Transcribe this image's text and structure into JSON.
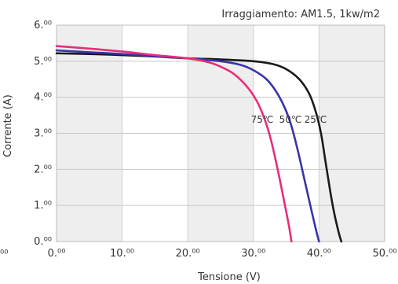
{
  "chart_data": {
    "type": "line",
    "subtitle": "Irraggiamento: AM1.5, 1kw/m2",
    "xlabel": "Tensione (V)",
    "ylabel": "Corrente (A)",
    "xlim": [
      0,
      50
    ],
    "ylim": [
      0,
      6
    ],
    "x_ticks": [
      "0.⁰⁰",
      "10.⁰⁰",
      "20.⁰⁰",
      "30.⁰⁰",
      "40.⁰⁰",
      "50.⁰⁰"
    ],
    "y_ticks": [
      "0.⁰⁰",
      "1.⁰⁰",
      "2.⁰⁰",
      "3.⁰⁰",
      "4.⁰⁰",
      "5.⁰⁰",
      "6.⁰⁰"
    ],
    "left_edge_fragment": "⁰⁰",
    "grid": true,
    "series": [
      {
        "name": "25℃",
        "color": "#1a1a1a",
        "points": [
          [
            0,
            5.22
          ],
          [
            5,
            5.2
          ],
          [
            10,
            5.17
          ],
          [
            15,
            5.13
          ],
          [
            20,
            5.08
          ],
          [
            25,
            5.05
          ],
          [
            30,
            5.0
          ],
          [
            33,
            4.92
          ],
          [
            35,
            4.78
          ],
          [
            37,
            4.5
          ],
          [
            38.5,
            4.1
          ],
          [
            39.5,
            3.6
          ],
          [
            40.3,
            3.0
          ],
          [
            41,
            2.2
          ],
          [
            41.7,
            1.4
          ],
          [
            42.3,
            0.8
          ],
          [
            43,
            0.25
          ],
          [
            43.4,
            0
          ]
        ]
      },
      {
        "name": "50℃",
        "color": "#3a33a8",
        "points": [
          [
            0,
            5.3
          ],
          [
            5,
            5.25
          ],
          [
            10,
            5.2
          ],
          [
            15,
            5.14
          ],
          [
            20,
            5.08
          ],
          [
            25,
            5.0
          ],
          [
            28,
            4.9
          ],
          [
            30,
            4.75
          ],
          [
            32,
            4.5
          ],
          [
            33.5,
            4.15
          ],
          [
            34.8,
            3.7
          ],
          [
            35.8,
            3.2
          ],
          [
            36.8,
            2.5
          ],
          [
            37.8,
            1.7
          ],
          [
            38.8,
            0.9
          ],
          [
            39.5,
            0.35
          ],
          [
            40,
            0
          ]
        ]
      },
      {
        "name": "75℃",
        "color": "#e62e79",
        "points": [
          [
            0,
            5.42
          ],
          [
            5,
            5.35
          ],
          [
            10,
            5.27
          ],
          [
            15,
            5.17
          ],
          [
            20,
            5.08
          ],
          [
            23,
            4.98
          ],
          [
            25,
            4.85
          ],
          [
            27,
            4.65
          ],
          [
            29,
            4.3
          ],
          [
            30.5,
            3.9
          ],
          [
            31.7,
            3.4
          ],
          [
            32.7,
            2.8
          ],
          [
            33.7,
            2.0
          ],
          [
            34.7,
            1.1
          ],
          [
            35.4,
            0.45
          ],
          [
            35.8,
            0
          ]
        ]
      }
    ]
  }
}
